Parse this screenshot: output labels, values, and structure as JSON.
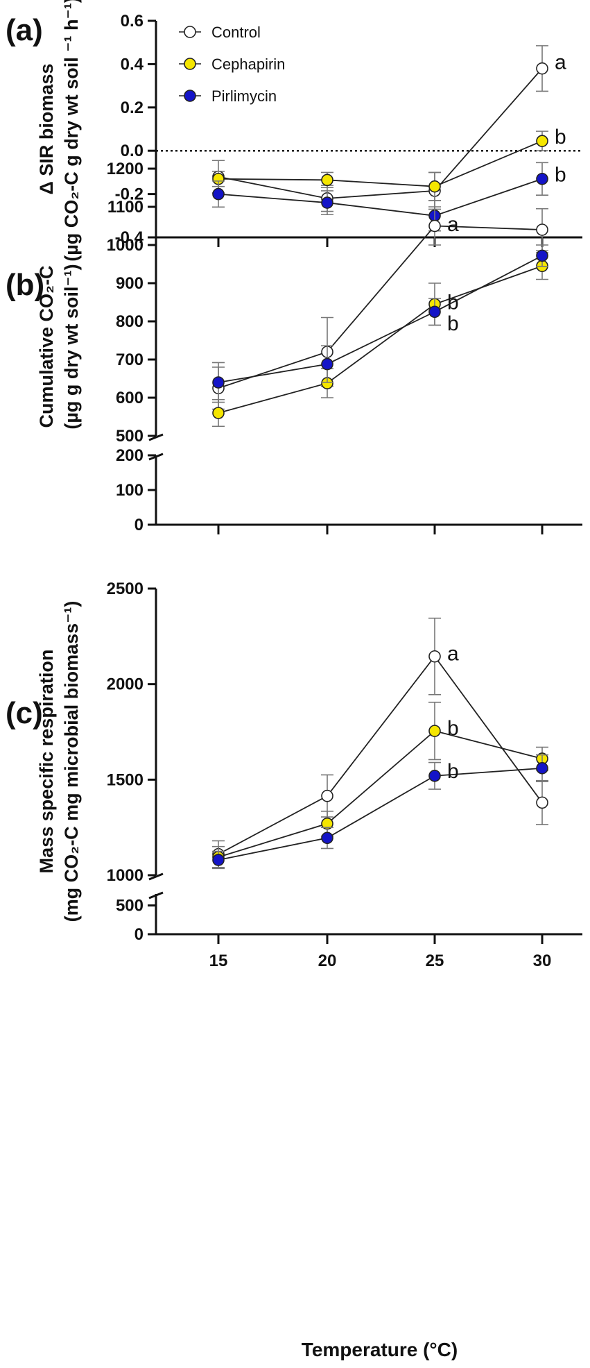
{
  "chart_data": [
    {
      "type": "line",
      "panel": "(a)",
      "ylabel_line1": "Δ SIR biomass",
      "ylabel_line2": "(µg CO₂-C g dry wt soil ⁻¹ h⁻¹)",
      "x": [
        15,
        20,
        25,
        30
      ],
      "ylim": [
        -0.4,
        0.6
      ],
      "yticks": [
        -0.4,
        -0.2,
        0.0,
        0.2,
        0.4,
        0.6
      ],
      "ytick_labels": [
        "-0.4",
        "-0.2",
        "0.0",
        "0.2",
        "0.4",
        "0.6"
      ],
      "reference_line": 0,
      "series": [
        {
          "name": "Control",
          "color": "#ffffff",
          "values": [
            -0.12,
            -0.22,
            -0.185,
            0.38
          ],
          "errors": [
            0.075,
            0.06,
            0.085,
            0.105
          ]
        },
        {
          "name": "Cephapirin",
          "color": "#f5e600",
          "values": [
            -0.13,
            -0.135,
            -0.165,
            0.045
          ],
          "errors": [
            0.035,
            0.035,
            0.065,
            0.045
          ]
        },
        {
          "name": "Pirlimycin",
          "color": "#1414c8",
          "values": [
            -0.2,
            -0.24,
            -0.3,
            -0.13
          ],
          "errors": [
            0.06,
            0.055,
            0.07,
            0.075
          ]
        }
      ],
      "annotations": [
        {
          "text": "a",
          "x": 30,
          "y": 0.41
        },
        {
          "text": "b",
          "x": 30,
          "y": 0.065
        },
        {
          "text": "b",
          "x": 30,
          "y": -0.11
        }
      ]
    },
    {
      "type": "line",
      "panel": "(b)",
      "ylabel_line1": "Cumulative CO₂-C",
      "ylabel_line2": "(µg g dry wt soil⁻¹)",
      "x": [
        15,
        20,
        25,
        30
      ],
      "ylim": [
        0,
        1200
      ],
      "axis_break": [
        200,
        500
      ],
      "yticks_upper": [
        500,
        600,
        700,
        800,
        900,
        1000,
        1100,
        1200
      ],
      "ytick_labels_upper": [
        "500",
        "600",
        "700",
        "800",
        "900",
        "1000",
        "1100",
        "1200"
      ],
      "yticks_lower": [
        0,
        100,
        200
      ],
      "ytick_labels_lower": [
        "0",
        "100",
        "200"
      ],
      "series": [
        {
          "name": "Control",
          "color": "#ffffff",
          "values": [
            625,
            720,
            1050,
            1040
          ],
          "errors": [
            55,
            90,
            50,
            55
          ]
        },
        {
          "name": "Cephapirin",
          "color": "#f5e600",
          "values": [
            560,
            638,
            845,
            945
          ],
          "errors": [
            35,
            38,
            55,
            35
          ]
        },
        {
          "name": "Pirlimycin",
          "color": "#1414c8",
          "values": [
            640,
            688,
            825,
            972
          ],
          "errors": [
            52,
            48,
            35,
            28
          ]
        }
      ],
      "annotations": [
        {
          "text": "a",
          "x": 25,
          "y": 1055
        },
        {
          "text": "b",
          "x": 25,
          "y": 850
        },
        {
          "text": "b",
          "x": 25,
          "y": 795
        }
      ]
    },
    {
      "type": "line",
      "panel": "(c)",
      "ylabel_line1": "Mass specific respiration",
      "ylabel_line2": "(mg CO₂-C mg microbial biomass⁻¹)",
      "xlabel": "Temperature (°C)",
      "x": [
        15,
        20,
        25,
        30
      ],
      "xtick_labels": [
        "15",
        "20",
        "25",
        "30"
      ],
      "ylim": [
        0,
        2500
      ],
      "axis_break": [
        700,
        1000
      ],
      "yticks_upper": [
        1000,
        1500,
        2000,
        2500
      ],
      "ytick_labels_upper": [
        "1000",
        "1500",
        "2000",
        "2500"
      ],
      "yticks_lower": [
        0,
        500
      ],
      "ytick_labels_lower": [
        "0",
        "500"
      ],
      "series": [
        {
          "name": "Control",
          "color": "#ffffff",
          "values": [
            1110,
            1415,
            2145,
            1380
          ],
          "errors": [
            70,
            110,
            200,
            115
          ]
        },
        {
          "name": "Cephapirin",
          "color": "#f5e600",
          "values": [
            1095,
            1270,
            1755,
            1610
          ],
          "errors": [
            55,
            65,
            150,
            60
          ]
        },
        {
          "name": "Pirlimycin",
          "color": "#1414c8",
          "values": [
            1080,
            1195,
            1520,
            1560
          ],
          "errors": [
            45,
            55,
            70,
            70
          ]
        }
      ],
      "annotations": [
        {
          "text": "a",
          "x": 25,
          "y": 2160
        },
        {
          "text": "b",
          "x": 25,
          "y": 1770
        },
        {
          "text": "b",
          "x": 25,
          "y": 1545
        }
      ]
    }
  ],
  "legend": [
    {
      "name": "Control",
      "color": "#ffffff"
    },
    {
      "name": "Cephapirin",
      "color": "#f5e600"
    },
    {
      "name": "Pirlimycin",
      "color": "#1414c8"
    }
  ]
}
